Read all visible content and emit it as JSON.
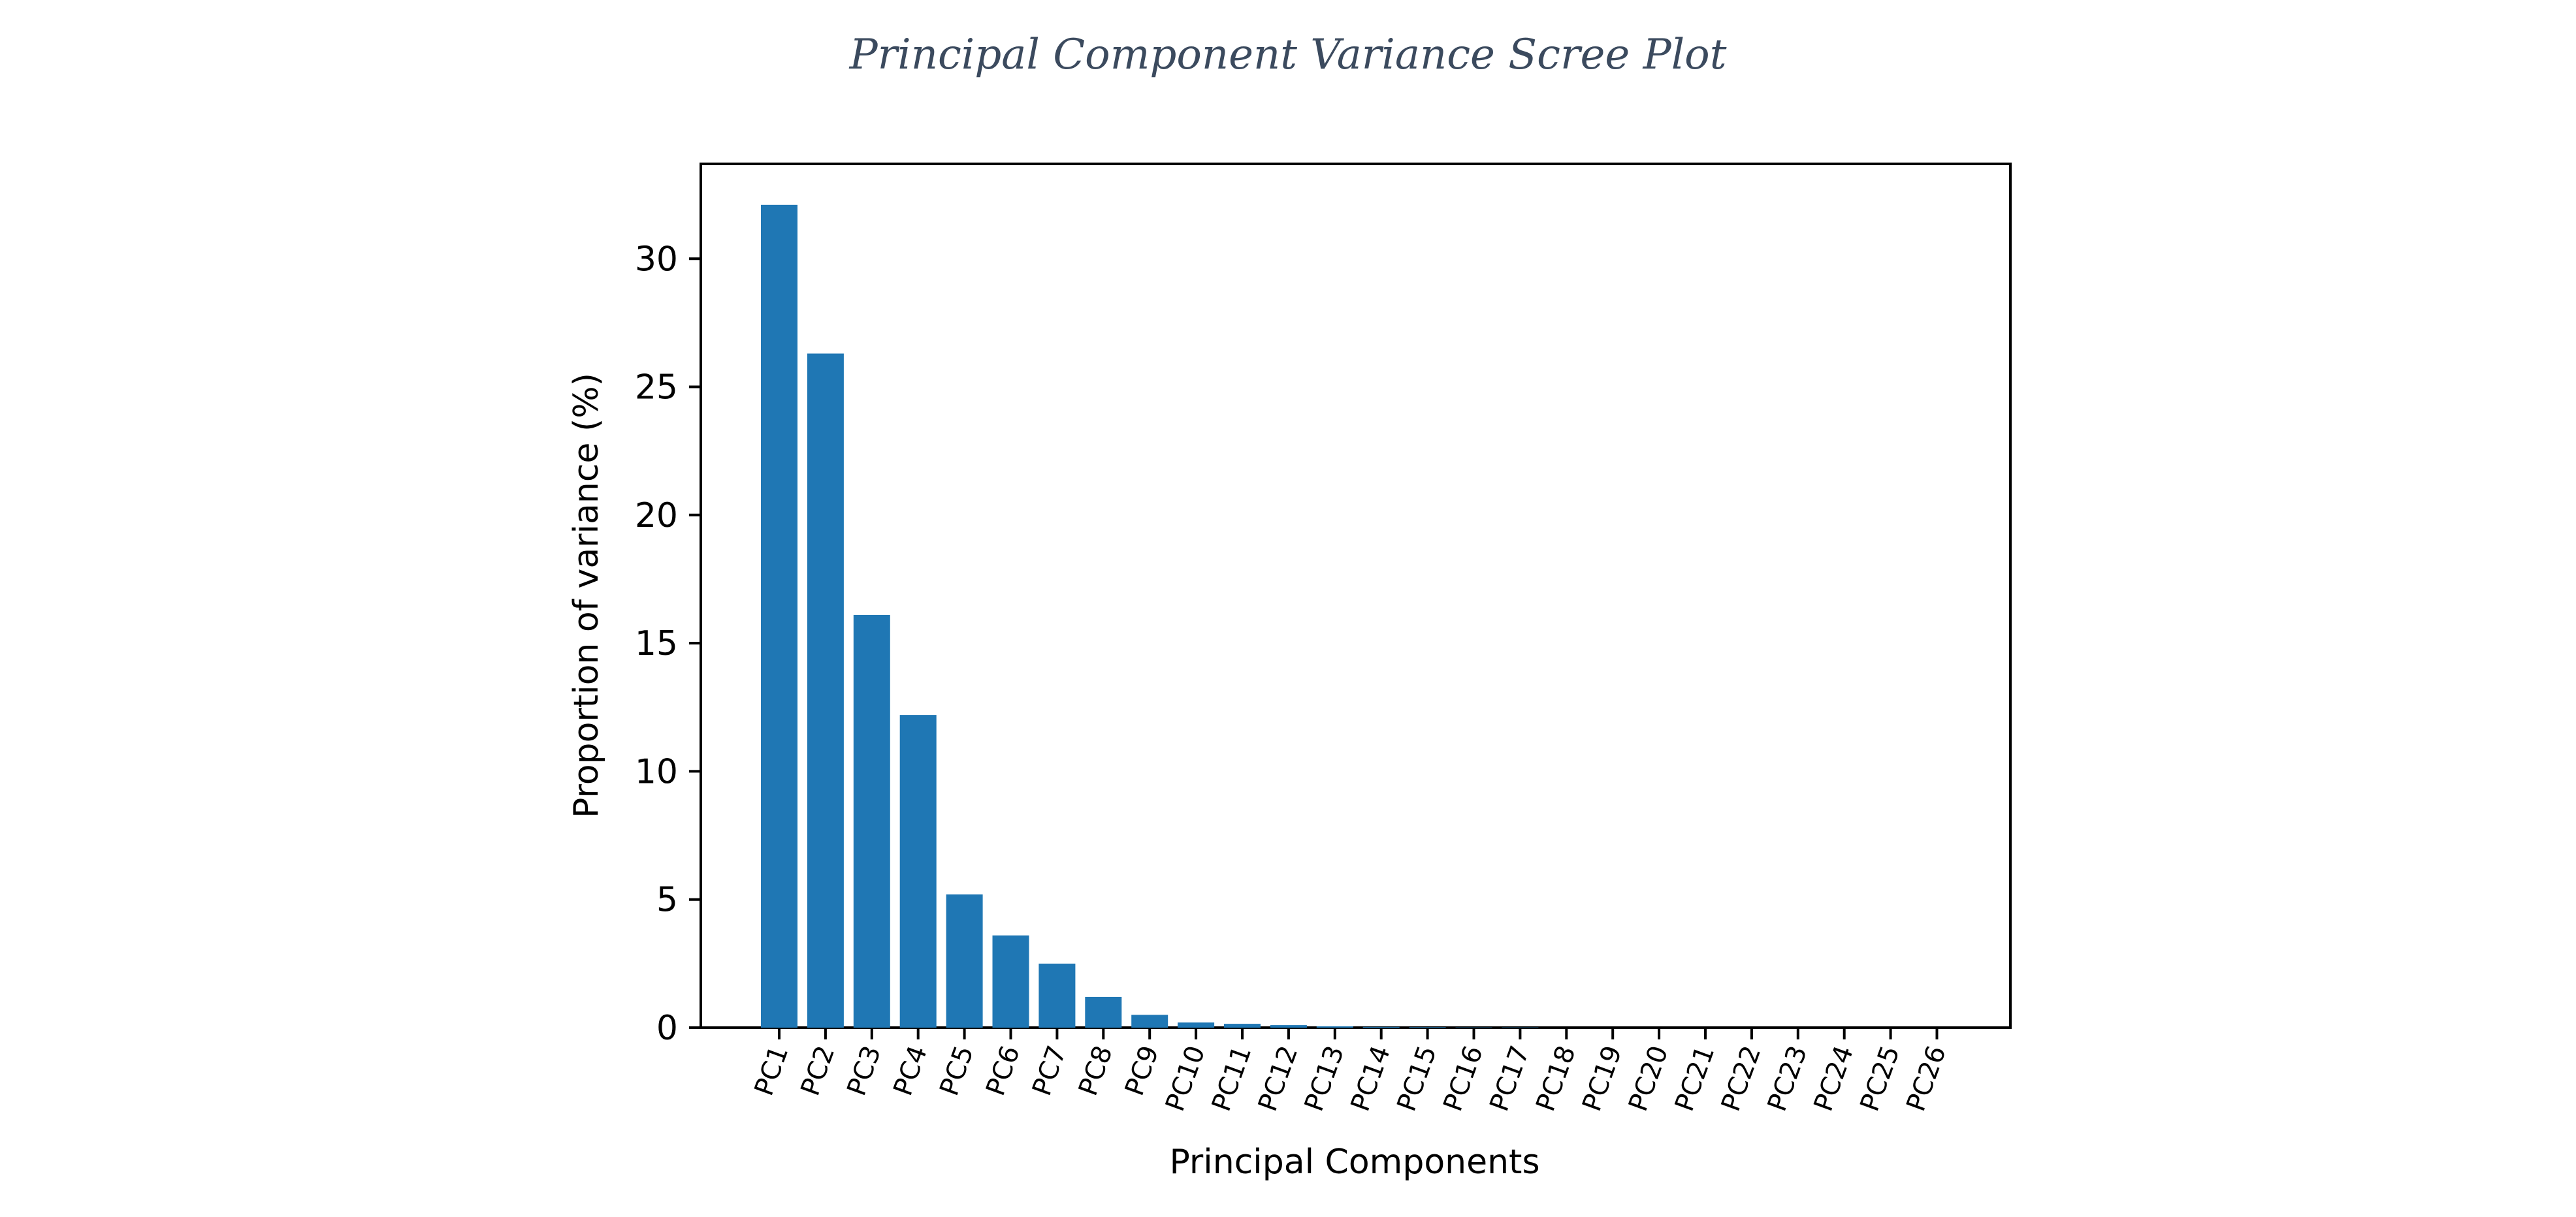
{
  "chart_data": {
    "type": "bar",
    "title": "Principal Component Variance Scree Plot",
    "xlabel": "Principal Components",
    "ylabel": "Proportion of variance (%)",
    "categories": [
      "PC1",
      "PC2",
      "PC3",
      "PC4",
      "PC5",
      "PC6",
      "PC7",
      "PC8",
      "PC9",
      "PC10",
      "PC11",
      "PC12",
      "PC13",
      "PC14",
      "PC15",
      "PC16",
      "PC17",
      "PC18",
      "PC19",
      "PC20",
      "PC21",
      "PC22",
      "PC23",
      "PC24",
      "PC25",
      "PC26"
    ],
    "values": [
      32.1,
      26.3,
      16.1,
      12.2,
      5.2,
      3.6,
      2.5,
      1.2,
      0.5,
      0.2,
      0.15,
      0.1,
      0.05,
      0.03,
      0.02,
      0.01,
      0.01,
      0.0,
      0.0,
      0.0,
      0.0,
      0.0,
      0.0,
      0.0,
      0.0,
      0.0
    ],
    "yticks": [
      0,
      5,
      10,
      15,
      20,
      25,
      30
    ],
    "ylim": [
      0,
      33.7
    ],
    "bar_color": "#1f77b4",
    "grid": false,
    "legend": "none"
  }
}
